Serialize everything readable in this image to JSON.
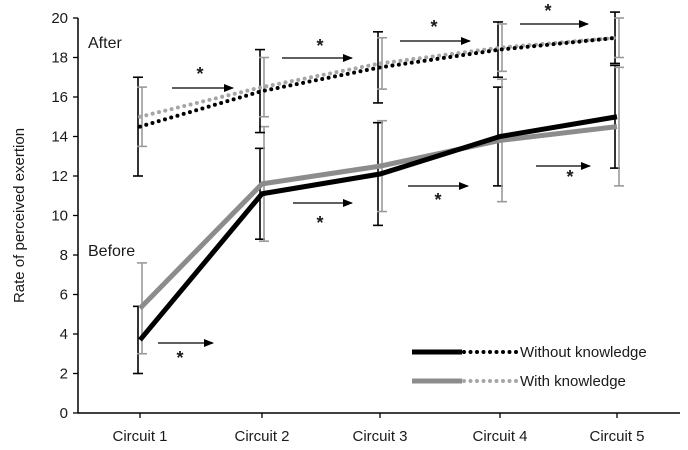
{
  "chart_data": {
    "type": "line",
    "title": "",
    "xlabel": "",
    "ylabel": "Rate of perceived exertion",
    "ylim": [
      0,
      20
    ],
    "yticks": [
      0,
      2,
      4,
      6,
      8,
      10,
      12,
      14,
      16,
      18,
      20
    ],
    "categories": [
      "Circuit 1",
      "Circuit 2",
      "Circuit 3",
      "Circuit 4",
      "Circuit 5"
    ],
    "series": [
      {
        "name": "Without knowledge",
        "phase": "Before",
        "style": "solid",
        "color": "#000000",
        "values": [
          3.7,
          11.1,
          12.1,
          14.0,
          15.0
        ],
        "error": [
          1.7,
          2.3,
          2.6,
          2.5,
          2.6
        ]
      },
      {
        "name": "With knowledge",
        "phase": "Before",
        "style": "solid",
        "color": "#8c8c8c",
        "values": [
          5.3,
          11.6,
          12.5,
          13.8,
          14.5
        ],
        "error": [
          2.3,
          2.9,
          2.3,
          3.1,
          3.0
        ]
      },
      {
        "name": "Without knowledge",
        "phase": "After",
        "style": "dotted",
        "color": "#000000",
        "values": [
          14.5,
          16.3,
          17.5,
          18.4,
          19.0
        ],
        "error": [
          2.5,
          2.1,
          1.8,
          1.4,
          1.3
        ]
      },
      {
        "name": "With knowledge",
        "phase": "After",
        "style": "dotted",
        "color": "#a6a6a6",
        "values": [
          15.0,
          16.5,
          17.7,
          18.5,
          19.0
        ],
        "error": [
          1.5,
          1.5,
          1.3,
          1.2,
          1.0
        ]
      }
    ],
    "annotations": {
      "after_label": "After",
      "before_label": "Before",
      "significance_marker": "*"
    },
    "significance": {
      "after": [
        1,
        2,
        3,
        4,
        5
      ],
      "before": [
        1,
        2,
        3,
        4,
        5
      ]
    },
    "legend": {
      "placement": "bottom-right",
      "items": [
        {
          "label": "Without knowledge",
          "color": "#000000"
        },
        {
          "label": "With knowledge",
          "color": "#8c8c8c"
        }
      ]
    },
    "grid": false
  }
}
